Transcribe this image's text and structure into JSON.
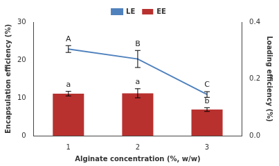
{
  "chart_data": {
    "type": "bar",
    "x_label": "Alginate concentration (%, w/w)",
    "y_label": "Encapsulation efficiency (%)",
    "y2_label": "Loading efficiency (%)",
    "categories": [
      "1",
      "2",
      "3"
    ],
    "series": [
      {
        "name": "EE",
        "type": "bar",
        "color": "#b8312f",
        "values": [
          11.1,
          11.2,
          6.9
        ],
        "errors": [
          0.6,
          1.2,
          0.5
        ],
        "letters": [
          "a",
          "a",
          "b"
        ]
      },
      {
        "name": "LE",
        "type": "line",
        "axis": "y2",
        "color": "#4f81bd",
        "marker": "none",
        "values": [
          0.305,
          0.27,
          0.145
        ],
        "errors": [
          0.012,
          0.03,
          0.01
        ],
        "letters": [
          "A",
          "B",
          "C"
        ]
      }
    ],
    "ylim": [
      0,
      30
    ],
    "yticks": [
      0,
      10,
      20,
      30
    ],
    "y2lim": [
      0,
      0.4
    ],
    "y2ticks": [
      {
        "value": 0,
        "label": "0.0"
      },
      0.2,
      0.4
    ],
    "grid": false,
    "legend": "top"
  }
}
